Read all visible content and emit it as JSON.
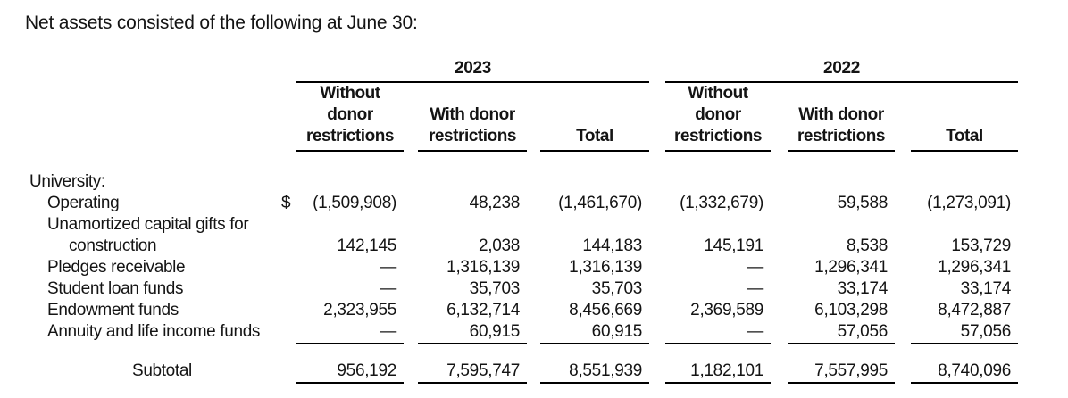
{
  "title": "Net assets consisted of the following at June 30:",
  "table": {
    "year_headers": [
      "2023",
      "2022"
    ],
    "column_headers": [
      "Without\ndonor\nrestrictions",
      "With donor\nrestrictions",
      "Total",
      "Without\ndonor\nrestrictions",
      "With donor\nrestrictions",
      "Total"
    ],
    "rows": [
      {
        "label": "University:"
      },
      {
        "label": "Operating",
        "dollar": "$",
        "values": [
          "(1,509,908)",
          "48,238",
          "(1,461,670)",
          "(1,332,679)",
          "59,588",
          "(1,273,091)"
        ]
      },
      {
        "label": "Unamortized capital gifts for"
      },
      {
        "label": "construction",
        "values": [
          "142,145",
          "2,038",
          "144,183",
          "145,191",
          "8,538",
          "153,729"
        ]
      },
      {
        "label": "Pledges receivable",
        "values": [
          "—",
          "1,316,139",
          "1,316,139",
          "—",
          "1,296,341",
          "1,296,341"
        ]
      },
      {
        "label": "Student loan funds",
        "values": [
          "—",
          "35,703",
          "35,703",
          "—",
          "33,174",
          "33,174"
        ]
      },
      {
        "label": "Endowment funds",
        "values": [
          "2,323,955",
          "6,132,714",
          "8,456,669",
          "2,369,589",
          "6,103,298",
          "8,472,887"
        ]
      },
      {
        "label": "Annuity and life income funds",
        "values": [
          "—",
          "60,915",
          "60,915",
          "—",
          "57,056",
          "57,056"
        ]
      },
      {
        "label": "Subtotal",
        "values": [
          "956,192",
          "7,595,747",
          "8,551,939",
          "1,182,101",
          "7,557,995",
          "8,740,096"
        ]
      }
    ]
  }
}
